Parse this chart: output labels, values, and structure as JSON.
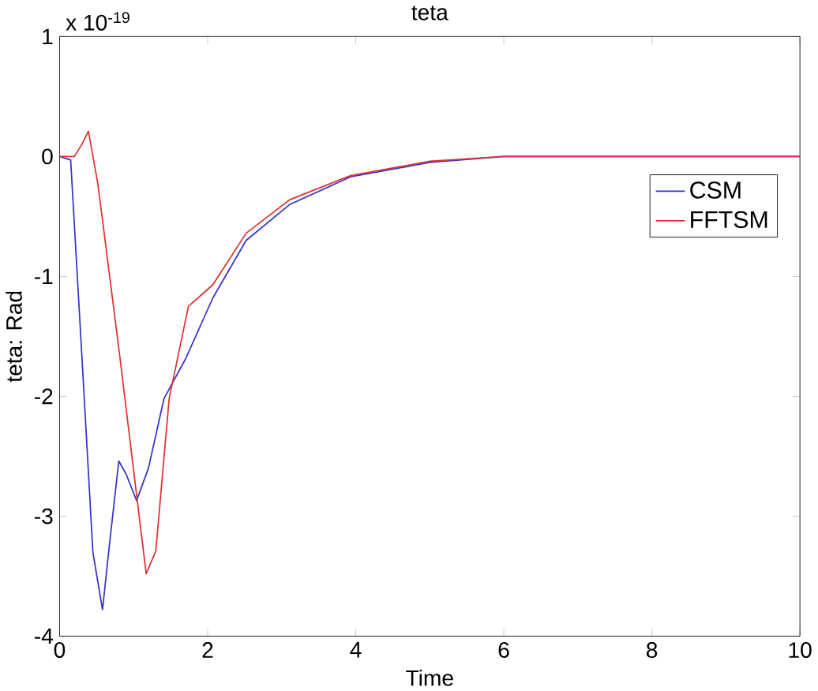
{
  "chart_data": {
    "type": "line",
    "title": "teta",
    "xlabel": "Time",
    "ylabel": "teta: Rad",
    "annotations": [
      "x 10$^{-19}$"
    ],
    "xlim": [
      0,
      10
    ],
    "ylim": [
      -4,
      1
    ],
    "xticks": [
      0,
      2,
      4,
      6,
      8,
      10
    ],
    "yticks": [
      -4,
      -3,
      -2,
      -1,
      0,
      1
    ],
    "grid": false,
    "legend": "top right",
    "marker": "none",
    "line_style": "solid",
    "series": [
      {
        "name": "CSM",
        "color": "#3333cc",
        "x": [
          0,
          0.15,
          0.3,
          0.45,
          0.58,
          0.68,
          0.8,
          0.9,
          1.04,
          1.2,
          1.41,
          1.7,
          2.07,
          2.52,
          3.11,
          3.93,
          5,
          6,
          8,
          10
        ],
        "values": [
          0,
          -0.03,
          -1.65,
          -3.3,
          -3.78,
          -3.2,
          -2.54,
          -2.65,
          -2.87,
          -2.6,
          -2.02,
          -1.69,
          -1.18,
          -0.7,
          -0.4,
          -0.17,
          -0.05,
          0,
          0,
          0
        ]
      },
      {
        "name": "FFTSM",
        "color": "#e03030",
        "x": [
          0,
          0.2,
          0.3,
          0.39,
          0.52,
          0.81,
          1.04,
          1.17,
          1.3,
          1.48,
          1.74,
          2.07,
          2.52,
          3.11,
          3.93,
          5,
          6,
          8,
          10
        ],
        "values": [
          0,
          0,
          0.1,
          0.21,
          -0.24,
          -1.65,
          -2.82,
          -3.48,
          -3.29,
          -2.02,
          -1.25,
          -1.07,
          -0.64,
          -0.36,
          -0.16,
          -0.04,
          0,
          0,
          0
        ]
      }
    ]
  }
}
